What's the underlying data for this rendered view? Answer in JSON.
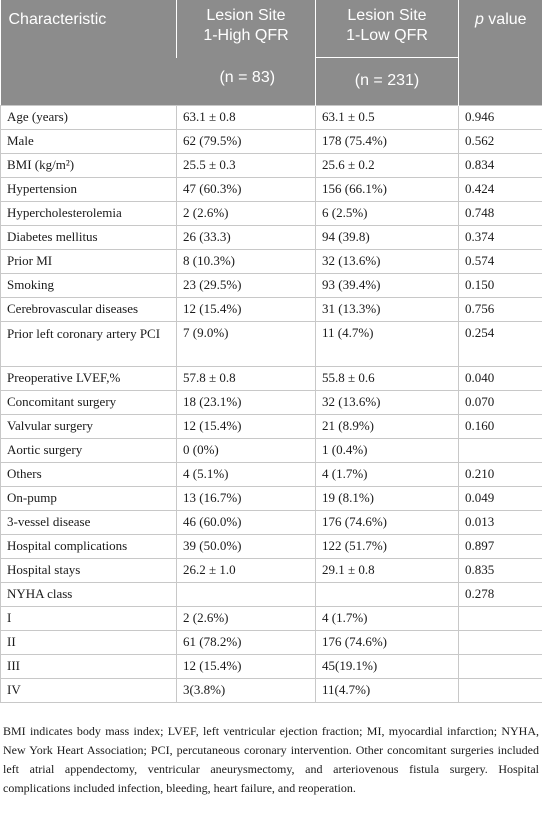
{
  "header": {
    "characteristic": "Characteristic",
    "col_high_line1": "Lesion Site",
    "col_high_line2": "1-High QFR",
    "col_low_line1": "Lesion Site",
    "col_low_line2": "1-Low QFR",
    "p_value_italic": "p",
    "p_value_rest": " value",
    "n_high": "(n = 83)",
    "n_low": "(n = 231)"
  },
  "rows": [
    {
      "label": "Age (years)",
      "high": "63.1 ± 0.8",
      "low": "63.1 ± 0.5",
      "p": "0.946"
    },
    {
      "label": "Male",
      "high": "62 (79.5%)",
      "low": "178 (75.4%)",
      "p": "0.562"
    },
    {
      "label": "BMI (kg/m²)",
      "high": "25.5 ± 0.3",
      "low": "25.6 ± 0.2",
      "p": "0.834"
    },
    {
      "label": "Hypertension",
      "high": "47 (60.3%)",
      "low": "156 (66.1%)",
      "p": "0.424"
    },
    {
      "label": "Hypercholesterolemia",
      "high": "2 (2.6%)",
      "low": "6 (2.5%)",
      "p": "0.748"
    },
    {
      "label": "Diabetes mellitus",
      "high": "26 (33.3)",
      "low": "94 (39.8)",
      "p": "0.374"
    },
    {
      "label": "Prior MI",
      "high": "8 (10.3%)",
      "low": "32 (13.6%)",
      "p": "0.574"
    },
    {
      "label": "Smoking",
      "high": "23 (29.5%)",
      "low": "93 (39.4%)",
      "p": "0.150"
    },
    {
      "label": "Cerebrovascular diseases",
      "high": "12 (15.4%)",
      "low": "31 (13.3%)",
      "p": "0.756"
    },
    {
      "label": "Prior left coronary artery PCI",
      "high": "7 (9.0%)",
      "low": "11 (4.7%)",
      "p": "0.254"
    },
    {
      "label": "Preoperative LVEF,%",
      "high": "57.8 ± 0.8",
      "low": "55.8 ± 0.6",
      "p": "0.040"
    },
    {
      "label": "Concomitant surgery",
      "high": "18 (23.1%)",
      "low": "32 (13.6%)",
      "p": "0.070"
    },
    {
      "label": "Valvular surgery",
      "high": "12 (15.4%)",
      "low": "21 (8.9%)",
      "p": "0.160"
    },
    {
      "label": "Aortic surgery",
      "high": "0 (0%)",
      "low": "1 (0.4%)",
      "p": ""
    },
    {
      "label": "Others",
      "high": "4 (5.1%)",
      "low": "4 (1.7%)",
      "p": "0.210"
    },
    {
      "label": "On-pump",
      "high": "13 (16.7%)",
      "low": "19 (8.1%)",
      "p": "0.049"
    },
    {
      "label": "3-vessel disease",
      "high": "46 (60.0%)",
      "low": "176 (74.6%)",
      "p": "0.013"
    },
    {
      "label": "Hospital complications",
      "high": "39 (50.0%)",
      "low": "122 (51.7%)",
      "p": "0.897"
    },
    {
      "label": "Hospital stays",
      "high": "26.2 ± 1.0",
      "low": "29.1 ± 0.8",
      "p": "0.835"
    },
    {
      "label": "NYHA class",
      "high": "",
      "low": "",
      "p": "0.278"
    },
    {
      "label": "I",
      "high": "2 (2.6%)",
      "low": "4 (1.7%)",
      "p": ""
    },
    {
      "label": "II",
      "high": "61 (78.2%)",
      "low": "176 (74.6%)",
      "p": ""
    },
    {
      "label": "III",
      "high": "12 (15.4%)",
      "low": "45(19.1%)",
      "p": ""
    },
    {
      "label": "IV",
      "high": "3(3.8%)",
      "low": "11(4.7%)",
      "p": ""
    }
  ],
  "footnote": "BMI indicates body mass index; LVEF, left ventricular ejection fraction; MI, myocardial infarction; NYHA, New York Heart Association; PCI, percutaneous coronary intervention. Other concomitant surgeries included left atrial appendectomy, ventricular aneurysmectomy, and arteriovenous fistula surgery. Hospital complications included infection, bleeding, heart failure, and reoperation."
}
